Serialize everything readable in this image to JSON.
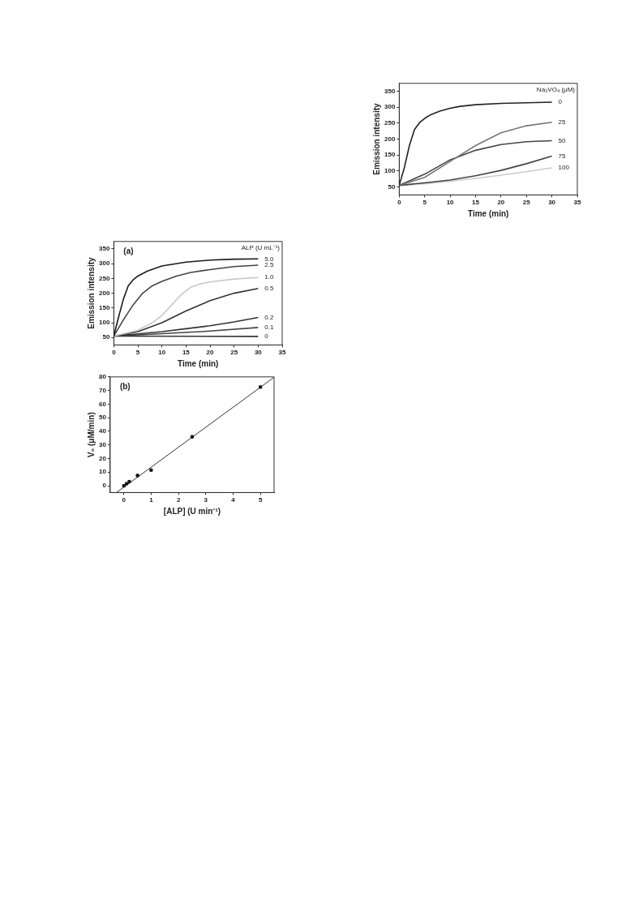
{
  "chart_data": [
    {
      "type": "line",
      "xlabel": "Time (min)",
      "ylabel": "Emission intensity",
      "legend_title": "Na₃VO₄ (μM)",
      "xlim": [
        0,
        35
      ],
      "xticks": [
        0,
        5,
        10,
        15,
        20,
        25,
        30,
        35
      ],
      "ylim": [
        25,
        375
      ],
      "yticks": [
        50,
        100,
        150,
        200,
        250,
        300,
        350
      ],
      "marker": "none",
      "grid": false,
      "x": [
        0,
        1,
        2,
        3,
        4,
        5,
        6,
        8,
        10,
        12,
        15,
        20,
        25,
        30
      ],
      "series": [
        {
          "name": "0",
          "color": "#222222",
          "values": [
            55,
            110,
            180,
            230,
            252,
            265,
            275,
            288,
            297,
            303,
            308,
            312,
            314,
            316
          ]
        },
        {
          "name": "25",
          "color": "#777777",
          "x": [
            0,
            5,
            10,
            15,
            20,
            25,
            30
          ],
          "values": [
            55,
            80,
            130,
            180,
            220,
            242,
            253
          ]
        },
        {
          "name": "50",
          "color": "#444444",
          "x": [
            0,
            5,
            10,
            15,
            20,
            25,
            30
          ],
          "values": [
            55,
            90,
            135,
            165,
            183,
            192,
            195
          ]
        },
        {
          "name": "75",
          "color": "#444444",
          "x": [
            0,
            5,
            10,
            15,
            20,
            25,
            30
          ],
          "values": [
            55,
            63,
            72,
            85,
            102,
            123,
            147
          ]
        },
        {
          "name": "100",
          "color": "#cccccc",
          "x": [
            0,
            5,
            10,
            15,
            20,
            25,
            30
          ],
          "values": [
            55,
            60,
            68,
            77,
            87,
            98,
            110
          ]
        }
      ]
    },
    {
      "type": "line",
      "xlabel": "Time (min)",
      "ylabel": "Emission intensity",
      "legend_title": "ALP (U mL⁻¹)",
      "annotations": [
        "(a)"
      ],
      "xlim": [
        0,
        35
      ],
      "xticks": [
        0,
        5,
        10,
        15,
        20,
        25,
        30,
        35
      ],
      "ylim": [
        25,
        375
      ],
      "yticks": [
        50,
        100,
        150,
        200,
        250,
        300,
        350
      ],
      "marker": "none",
      "grid": false,
      "series": [
        {
          "name": "5.0",
          "color": "#1a1a1a",
          "x": [
            0,
            1,
            2,
            3,
            4,
            5,
            7,
            10,
            15,
            20,
            25,
            30
          ],
          "values": [
            55,
            120,
            180,
            225,
            245,
            258,
            275,
            292,
            305,
            312,
            315,
            316
          ]
        },
        {
          "name": "2.5",
          "color": "#444444",
          "x": [
            0,
            2,
            4,
            6,
            8,
            10,
            13,
            16,
            20,
            25,
            30
          ],
          "values": [
            55,
            110,
            160,
            200,
            225,
            240,
            258,
            270,
            280,
            290,
            295
          ]
        },
        {
          "name": "1.0",
          "color": "#c8c8c8",
          "x": [
            0,
            5,
            8,
            10,
            12,
            14,
            16,
            18,
            20,
            25,
            30
          ],
          "values": [
            55,
            75,
            100,
            125,
            160,
            195,
            220,
            232,
            238,
            248,
            253
          ]
        },
        {
          "name": "0.5",
          "color": "#333333",
          "x": [
            0,
            5,
            10,
            15,
            20,
            25,
            30
          ],
          "values": [
            55,
            70,
            100,
            140,
            175,
            200,
            216
          ]
        },
        {
          "name": "0.2",
          "color": "#333333",
          "x": [
            0,
            10,
            15,
            20,
            25,
            30
          ],
          "values": [
            55,
            70,
            80,
            90,
            103,
            118
          ]
        },
        {
          "name": "0.1",
          "color": "#444444",
          "x": [
            0,
            10,
            20,
            30
          ],
          "values": [
            55,
            63,
            72,
            84
          ]
        },
        {
          "name": "0",
          "color": "#333333",
          "x": [
            0,
            30
          ],
          "values": [
            55,
            54
          ]
        }
      ]
    },
    {
      "type": "scatter",
      "xlabel": "[ALP] (U min⁻¹)",
      "ylabel": "V₀ (μM/min)",
      "annotations": [
        "(b)"
      ],
      "xlim": [
        -0.5,
        5.5
      ],
      "xticks": [
        0,
        1,
        2,
        3,
        4,
        5
      ],
      "ylim": [
        -5,
        80
      ],
      "yticks": [
        0,
        10,
        20,
        30,
        40,
        50,
        60,
        70,
        80
      ],
      "grid": false,
      "series": [
        {
          "type": "scatter",
          "marker": "square",
          "color": "#111111",
          "x": [
            0,
            0.1,
            0.2,
            0.5,
            1,
            2.5,
            5
          ],
          "values": [
            0,
            1.5,
            3,
            7.5,
            11.5,
            36,
            72.5
          ]
        },
        {
          "type": "line",
          "marker": "none",
          "color": "#333333",
          "x": [
            -0.27,
            5.5
          ],
          "values": [
            -5,
            79.7
          ]
        }
      ]
    }
  ]
}
